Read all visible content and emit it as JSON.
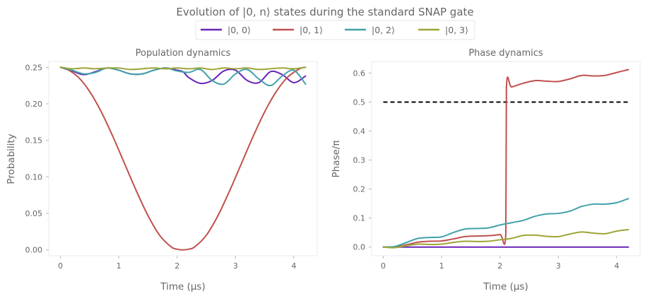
{
  "figure": {
    "title": "Evolution of |0, n⟩ states during the standard SNAP gate",
    "legend": [
      {
        "label": "|0, 0⟩",
        "color": "#6a22b8"
      },
      {
        "label": "|0, 1⟩",
        "color": "#c0504d"
      },
      {
        "label": "|0, 2⟩",
        "color": "#41a1aa"
      },
      {
        "label": "|0, 3⟩",
        "color": "#9da536"
      }
    ],
    "legend_position": "top-center"
  },
  "chart_data": [
    {
      "type": "line",
      "title": "Population dynamics",
      "xlabel": "Time (μs)",
      "ylabel": "Probability",
      "xlim": [
        -0.2,
        4.4
      ],
      "ylim": [
        -0.008,
        0.258
      ],
      "xticks": [
        0,
        1,
        2,
        3,
        4
      ],
      "xtick_labels": [
        "0",
        "1",
        "2",
        "3",
        "4"
      ],
      "yticks": [
        0.0,
        0.05,
        0.1,
        0.15,
        0.2,
        0.25
      ],
      "ytick_labels": [
        "0.00",
        "0.05",
        "0.10",
        "0.15",
        "0.20",
        "0.25"
      ],
      "grid": false,
      "series": [
        {
          "name": "|0, 0⟩",
          "color": "#6a22b8",
          "x": [
            0,
            0.2,
            0.4,
            0.6,
            0.8,
            1.0,
            1.2,
            1.4,
            1.6,
            1.8,
            2.0,
            2.1,
            2.2,
            2.4,
            2.6,
            2.8,
            3.0,
            3.2,
            3.4,
            3.6,
            3.8,
            4.0,
            4.2
          ],
          "y": [
            0.25,
            0.245,
            0.24,
            0.244,
            0.249,
            0.246,
            0.241,
            0.241,
            0.246,
            0.249,
            0.246,
            0.244,
            0.236,
            0.228,
            0.232,
            0.245,
            0.246,
            0.232,
            0.229,
            0.244,
            0.24,
            0.229,
            0.238
          ]
        },
        {
          "name": "|0, 1⟩",
          "color": "#c0504d",
          "x": [
            0,
            0.1,
            0.3,
            0.5,
            0.7,
            0.9,
            1.1,
            1.3,
            1.5,
            1.7,
            1.9,
            2.0,
            2.1,
            2.2,
            2.3,
            2.5,
            2.7,
            2.9,
            3.1,
            3.3,
            3.5,
            3.7,
            3.9,
            4.1,
            4.2
          ],
          "y": [
            0.25,
            0.248,
            0.237,
            0.217,
            0.189,
            0.155,
            0.118,
            0.081,
            0.047,
            0.02,
            0.004,
            0.001,
            0.0,
            0.001,
            0.004,
            0.02,
            0.047,
            0.081,
            0.118,
            0.155,
            0.189,
            0.217,
            0.237,
            0.248,
            0.25
          ]
        },
        {
          "name": "|0, 2⟩",
          "color": "#41a1aa",
          "x": [
            0,
            0.2,
            0.4,
            0.6,
            0.8,
            1.0,
            1.2,
            1.4,
            1.6,
            1.8,
            2.0,
            2.2,
            2.4,
            2.6,
            2.8,
            3.0,
            3.2,
            3.4,
            3.6,
            3.8,
            4.0,
            4.2
          ],
          "y": [
            0.25,
            0.246,
            0.241,
            0.243,
            0.249,
            0.246,
            0.241,
            0.241,
            0.246,
            0.249,
            0.245,
            0.243,
            0.247,
            0.232,
            0.227,
            0.241,
            0.247,
            0.234,
            0.225,
            0.238,
            0.246,
            0.227
          ]
        },
        {
          "name": "|0, 3⟩",
          "color": "#9da536",
          "x": [
            0,
            0.2,
            0.4,
            0.6,
            0.8,
            1.0,
            1.2,
            1.4,
            1.6,
            1.8,
            2.0,
            2.2,
            2.4,
            2.6,
            2.8,
            3.0,
            3.2,
            3.4,
            3.6,
            3.8,
            4.0,
            4.2
          ],
          "y": [
            0.25,
            0.248,
            0.249,
            0.248,
            0.249,
            0.249,
            0.247,
            0.248,
            0.249,
            0.248,
            0.249,
            0.248,
            0.249,
            0.247,
            0.249,
            0.248,
            0.249,
            0.247,
            0.248,
            0.249,
            0.248,
            0.25
          ]
        }
      ]
    },
    {
      "type": "line",
      "title": "Phase dynamics",
      "xlabel": "Time (μs)",
      "ylabel": "Phase/π",
      "xlim": [
        -0.2,
        4.4
      ],
      "ylim": [
        -0.03,
        0.64
      ],
      "xticks": [
        0,
        1,
        2,
        3,
        4
      ],
      "xtick_labels": [
        "0",
        "1",
        "2",
        "3",
        "4"
      ],
      "yticks": [
        0.0,
        0.1,
        0.2,
        0.3,
        0.4,
        0.5,
        0.6
      ],
      "ytick_labels": [
        "0.0",
        "0.1",
        "0.2",
        "0.3",
        "0.4",
        "0.5",
        "0.6"
      ],
      "grid": false,
      "reference_line": {
        "y": 0.5,
        "x": [
          0,
          4.2
        ],
        "style": "dashed",
        "color": "#000000"
      },
      "series": [
        {
          "name": "|0, 0⟩",
          "color": "#6a22b8",
          "x": [
            0,
            4.2
          ],
          "y": [
            0.0,
            0.0
          ]
        },
        {
          "name": "|0, 1⟩",
          "color": "#c0504d",
          "x": [
            0,
            0.2,
            0.4,
            0.6,
            0.8,
            1.0,
            1.2,
            1.4,
            1.6,
            1.8,
            2.0,
            2.1,
            2.11,
            2.2,
            2.4,
            2.6,
            2.8,
            3.0,
            3.2,
            3.4,
            3.6,
            3.8,
            4.0,
            4.2
          ],
          "y": [
            0.0,
            0.0,
            0.008,
            0.017,
            0.02,
            0.021,
            0.028,
            0.036,
            0.038,
            0.039,
            0.043,
            0.048,
            0.548,
            0.552,
            0.565,
            0.574,
            0.572,
            0.571,
            0.58,
            0.592,
            0.59,
            0.592,
            0.602,
            0.612
          ]
        },
        {
          "name": "|0, 2⟩",
          "color": "#41a1aa",
          "x": [
            0,
            0.2,
            0.4,
            0.6,
            0.8,
            1.0,
            1.2,
            1.4,
            1.6,
            1.8,
            2.0,
            2.2,
            2.4,
            2.6,
            2.8,
            3.0,
            3.2,
            3.4,
            3.6,
            3.8,
            4.0,
            4.2
          ],
          "y": [
            0.0,
            0.002,
            0.016,
            0.03,
            0.033,
            0.035,
            0.05,
            0.062,
            0.064,
            0.066,
            0.076,
            0.084,
            0.092,
            0.106,
            0.114,
            0.116,
            0.124,
            0.14,
            0.148,
            0.148,
            0.153,
            0.167
          ]
        },
        {
          "name": "|0, 3⟩",
          "color": "#9da536",
          "x": [
            0,
            0.2,
            0.4,
            0.6,
            0.8,
            1.0,
            1.2,
            1.4,
            1.6,
            1.8,
            2.0,
            2.2,
            2.4,
            2.6,
            2.8,
            3.0,
            3.2,
            3.4,
            3.6,
            3.8,
            4.0,
            4.2
          ],
          "y": [
            0.0,
            -0.002,
            0.005,
            0.01,
            0.009,
            0.01,
            0.016,
            0.02,
            0.019,
            0.02,
            0.025,
            0.03,
            0.04,
            0.041,
            0.037,
            0.036,
            0.045,
            0.052,
            0.048,
            0.046,
            0.055,
            0.06
          ]
        }
      ]
    }
  ]
}
